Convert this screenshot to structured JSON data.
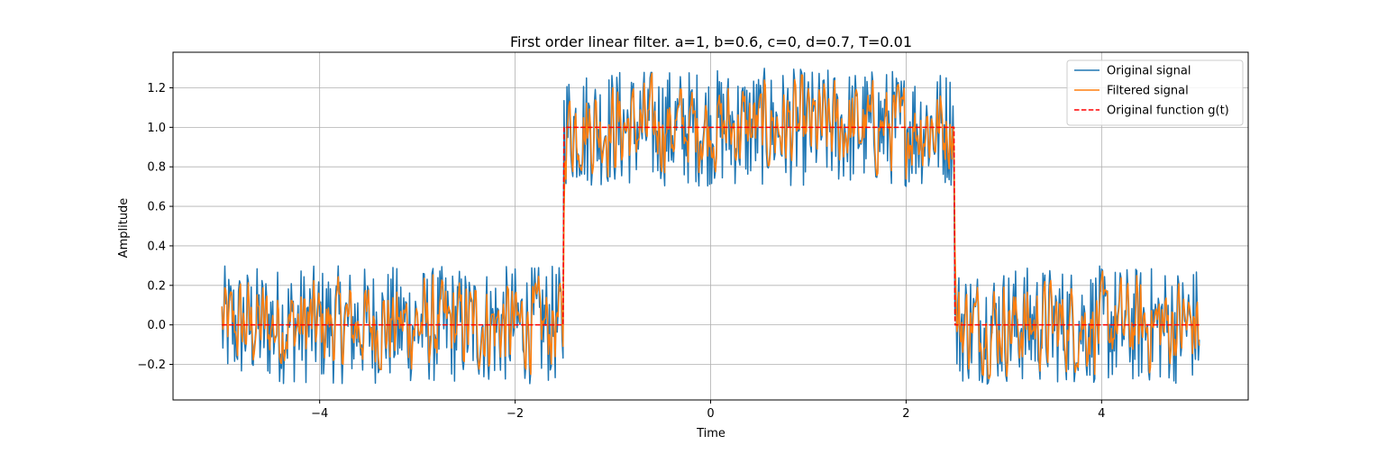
{
  "chart_data": {
    "type": "line",
    "title": "First order linear filter. a=1, b=0.6, c=0, d=0.7, T=0.01",
    "xlabel": "Time",
    "ylabel": "Amplitude",
    "xlim": [
      -5.5,
      5.5
    ],
    "ylim": [
      -0.38,
      1.38
    ],
    "xticks": [
      -4,
      -2,
      0,
      2,
      4
    ],
    "xtick_labels": [
      "−4",
      "−2",
      "0",
      "2",
      "4"
    ],
    "yticks": [
      -0.2,
      0.0,
      0.2,
      0.4,
      0.6,
      0.8,
      1.0,
      1.2
    ],
    "ytick_labels": [
      "−0.2",
      "0.0",
      "0.2",
      "0.4",
      "0.6",
      "0.8",
      "1.0",
      "1.2"
    ],
    "grid": true,
    "legend_position": "top-right",
    "step_function": {
      "segments": [
        {
          "from": -5.0,
          "to": -1.5,
          "value": 0.0
        },
        {
          "from": -1.5,
          "to": 2.5,
          "value": 1.0
        },
        {
          "from": 2.5,
          "to": 5.0,
          "value": 0.0
        }
      ],
      "noise_amplitude": 0.3,
      "sample_step": 0.01
    },
    "filter": {
      "a": 1,
      "b": 0.6,
      "c": 0,
      "d": 0.7,
      "T": 0.01
    },
    "series": [
      {
        "name": "Original signal",
        "color": "#1f77b4",
        "style": "solid"
      },
      {
        "name": "Filtered signal",
        "color": "#ff7f0e",
        "style": "solid"
      },
      {
        "name": "Original function g(t)",
        "color": "#ff0000",
        "style": "dashed"
      }
    ]
  }
}
